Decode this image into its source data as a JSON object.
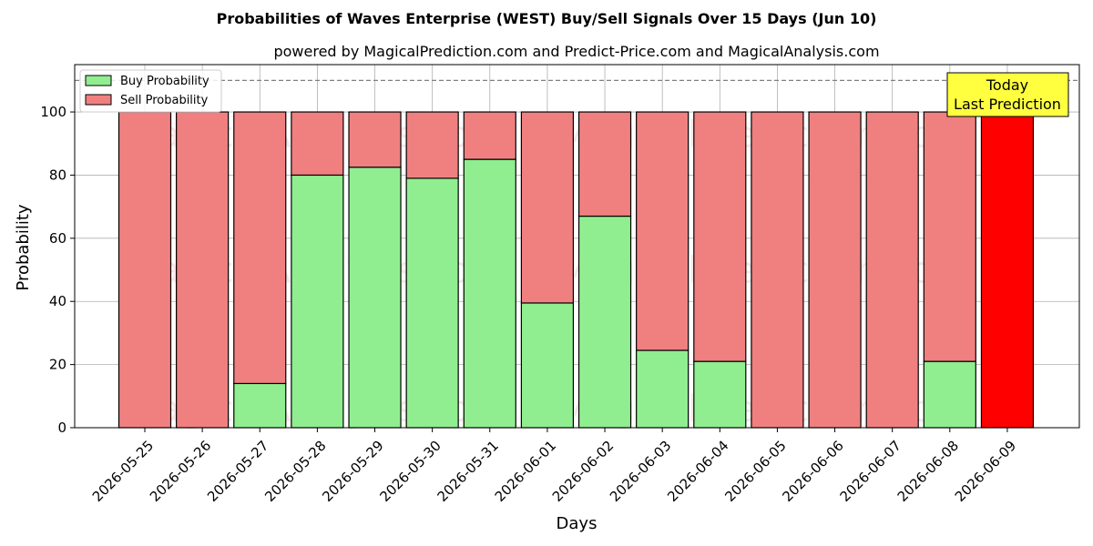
{
  "chart_data": {
    "type": "bar",
    "stacked": true,
    "title": "Probabilities of Waves Enterprise (WEST) Buy/Sell Signals Over 15 Days (Jun 10)",
    "subtitle": "powered by MagicalPrediction.com and Predict-Price.com and MagicalAnalysis.com",
    "xlabel": "Days",
    "ylabel": "Probability",
    "ylim": [
      0,
      115
    ],
    "yticks": [
      0,
      20,
      40,
      60,
      80,
      100
    ],
    "reference_line": 110,
    "grid": true,
    "legend_position": "top-left",
    "categories": [
      "2026-05-25",
      "2026-05-26",
      "2026-05-27",
      "2026-05-28",
      "2026-05-29",
      "2026-05-30",
      "2026-05-31",
      "2026-06-01",
      "2026-06-02",
      "2026-06-03",
      "2026-06-04",
      "2026-06-05",
      "2026-06-06",
      "2026-06-07",
      "2026-06-08",
      "2026-06-09"
    ],
    "series": [
      {
        "name": "Buy Probability",
        "color": "#90ee90",
        "values": [
          0,
          0,
          14,
          80,
          82.5,
          79,
          85,
          39.5,
          67,
          24.5,
          21,
          0,
          0,
          0,
          21,
          0
        ]
      },
      {
        "name": "Sell Probability",
        "color": "#f08080",
        "values": [
          100,
          100,
          86,
          20,
          17.5,
          21,
          15,
          60.5,
          33,
          75.5,
          79,
          100,
          100,
          100,
          79,
          100
        ]
      }
    ],
    "highlight": {
      "index": 15,
      "color": "#ff0000"
    },
    "annotation": {
      "lines": [
        "Today",
        "Last Prediction"
      ],
      "background": "#ffff40"
    },
    "watermarks": [
      "MagicalAnalysis.com",
      "MagicalPrediction.com"
    ]
  }
}
